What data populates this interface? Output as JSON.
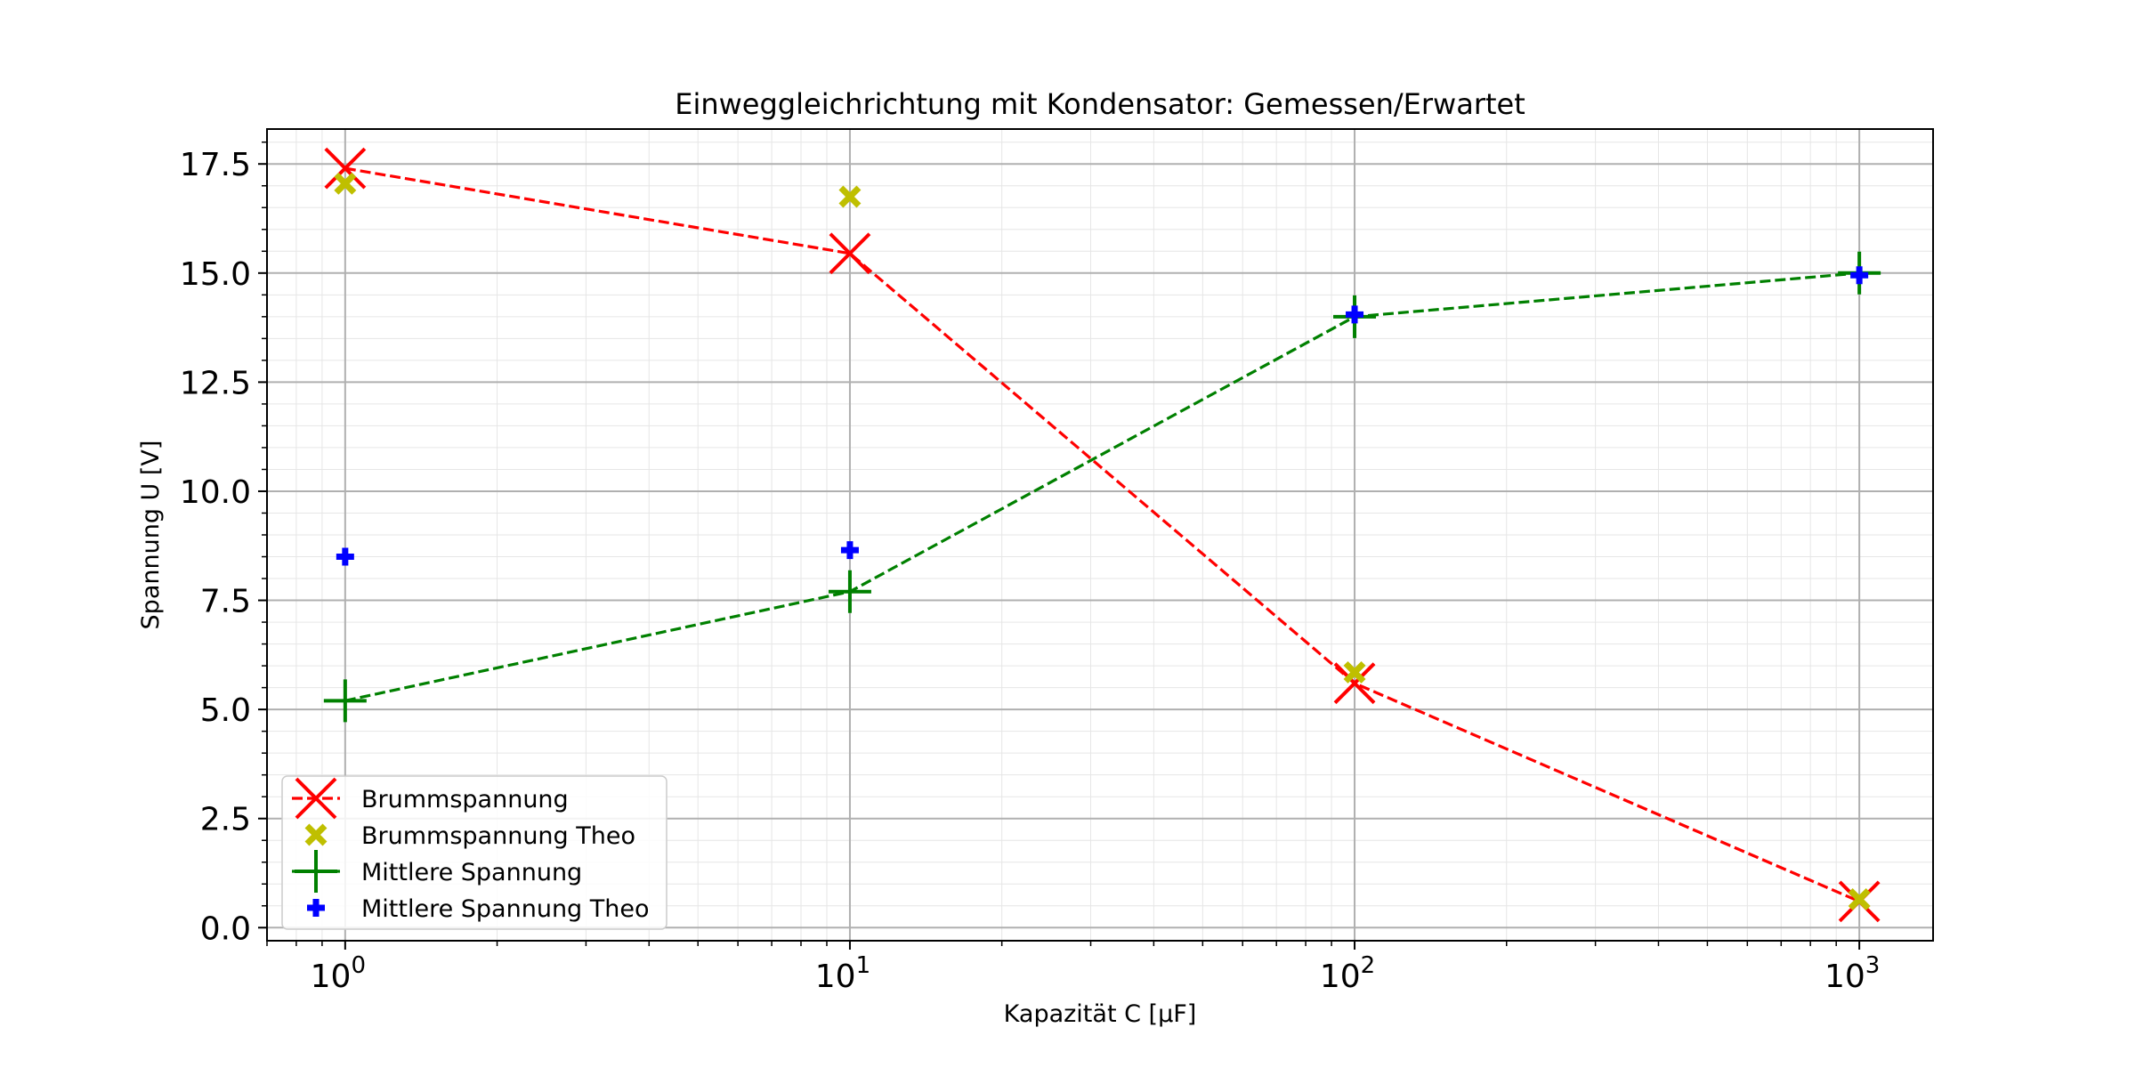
{
  "chart_data": {
    "type": "scatter",
    "title": "Einweggleichrichtung mit Kondensator: Gemessen/Erwartet",
    "xlabel": "Kapazität C [µF]",
    "ylabel": "Spannung U [V]",
    "xscale": "log",
    "xlim": [
      0.7,
      1400
    ],
    "ylim": [
      -0.3,
      18.3
    ],
    "x_ticks": [
      {
        "value": 1,
        "base": "10",
        "exp": "0"
      },
      {
        "value": 10,
        "base": "10",
        "exp": "1"
      },
      {
        "value": 100,
        "base": "10",
        "exp": "2"
      },
      {
        "value": 1000,
        "base": "10",
        "exp": "3"
      }
    ],
    "y_ticks": [
      "0.0",
      "2.5",
      "5.0",
      "7.5",
      "10.0",
      "12.5",
      "15.0",
      "17.5"
    ],
    "grid": true,
    "legend_position": "lower-left",
    "series": [
      {
        "name": "Brummspannung",
        "color": "#ff0000",
        "marker": "x-large",
        "line": "dashed",
        "x": [
          1,
          10,
          100,
          1000
        ],
        "y": [
          17.4,
          15.45,
          5.6,
          0.6
        ]
      },
      {
        "name": "Brummspannung Theo",
        "color": "#bfbf00",
        "marker": "x-filled",
        "line": "none",
        "x": [
          1,
          10,
          100,
          1000
        ],
        "y": [
          17.05,
          16.75,
          5.85,
          0.65
        ]
      },
      {
        "name": "Mittlere Spannung",
        "color": "#008000",
        "marker": "plus-large",
        "line": "dashed",
        "x": [
          1,
          10,
          100,
          1000
        ],
        "y": [
          5.2,
          7.7,
          14.0,
          15.0
        ]
      },
      {
        "name": "Mittlere Spannung Theo",
        "color": "#0000ff",
        "marker": "plus-filled",
        "line": "none",
        "x": [
          1,
          10,
          100,
          1000
        ],
        "y": [
          8.5,
          8.65,
          14.05,
          14.95
        ]
      }
    ]
  }
}
